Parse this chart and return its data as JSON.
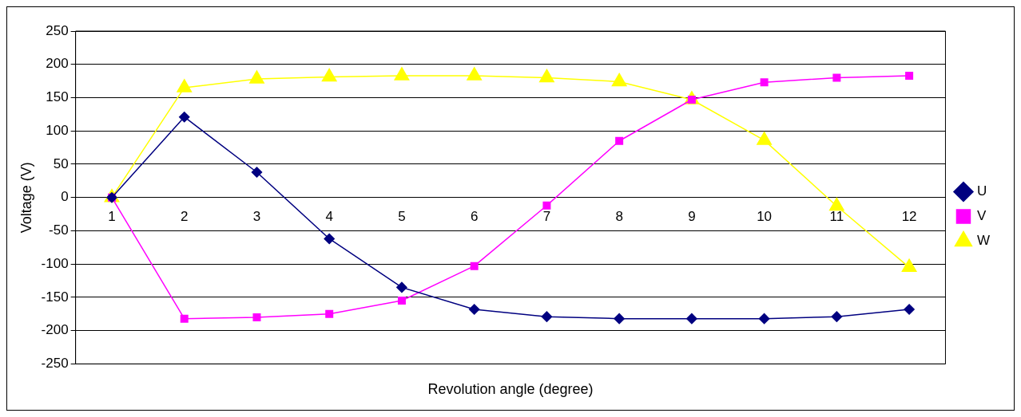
{
  "chart_data": {
    "type": "line",
    "xlabel": "Revolution angle (degree)",
    "ylabel": "Voltage (V)",
    "categories": [
      "1",
      "2",
      "3",
      "4",
      "5",
      "6",
      "7",
      "8",
      "9",
      "10",
      "11",
      "12"
    ],
    "series": [
      {
        "name": "U",
        "color": "#000080",
        "marker": "diamond",
        "values": [
          0,
          121,
          38,
          -62,
          -135,
          -168,
          -179,
          -182,
          -182,
          -182,
          -179,
          -168
        ]
      },
      {
        "name": "V",
        "color": "#ff00ff",
        "marker": "square",
        "values": [
          0,
          -182,
          -180,
          -175,
          -155,
          -103,
          -12,
          85,
          147,
          173,
          180,
          183
        ]
      },
      {
        "name": "W",
        "color": "#ffff00",
        "marker": "triangle",
        "values": [
          0,
          165,
          178,
          181,
          183,
          183,
          180,
          174,
          147,
          86,
          -13,
          -105
        ]
      }
    ],
    "ylim": [
      -250,
      250
    ],
    "yticks": [
      -250,
      -200,
      -150,
      -100,
      -50,
      0,
      50,
      100,
      150,
      200,
      250
    ],
    "grid": "y",
    "legend": "right"
  }
}
